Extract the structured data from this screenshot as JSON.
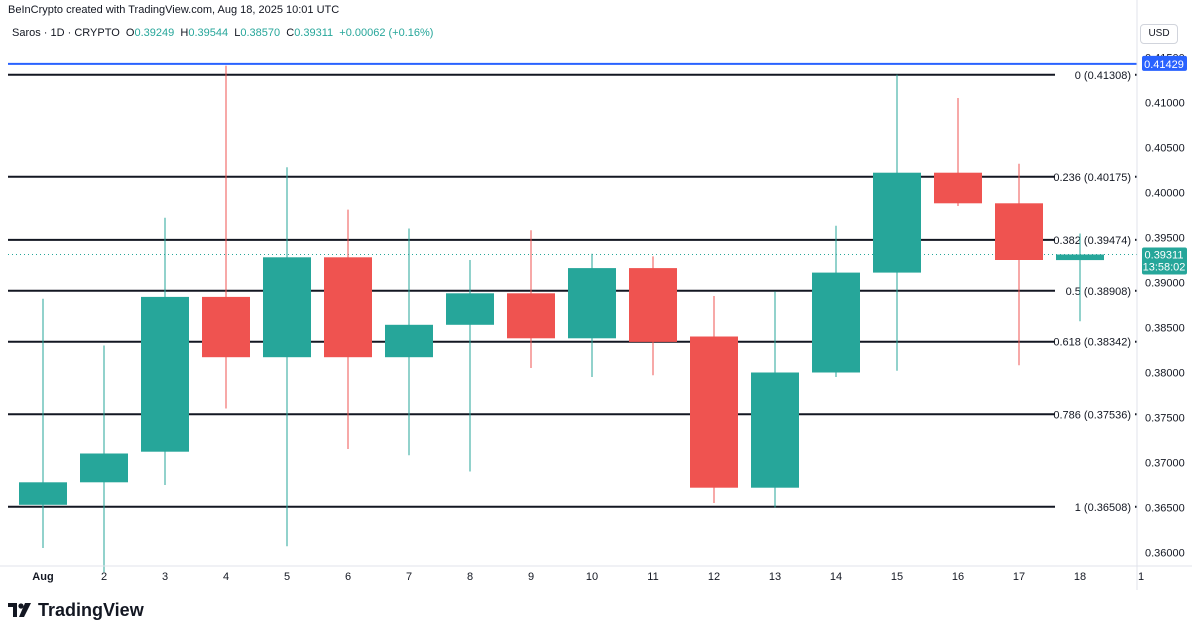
{
  "header": {
    "credit": "BeInCrypto created with TradingView.com, Aug 18, 2025 10:01 UTC"
  },
  "legend": {
    "symbol": "Saros · 1D · CRYPTO",
    "o_label": "O",
    "o_value": "0.39249",
    "h_label": "H",
    "h_value": "0.39544",
    "l_label": "L",
    "l_value": "0.38570",
    "c_label": "C",
    "c_value": "0.39311",
    "change": "+0.00062 (+0.16%)"
  },
  "currency_button": "USD",
  "footer": {
    "brand": "TradingView"
  },
  "colors": {
    "up": "#26a69a",
    "down": "#ef5350",
    "fib": "#131722",
    "hline": "#2962ff"
  },
  "price_tags": {
    "top": {
      "value": "0.41429"
    },
    "last": {
      "value": "0.39311",
      "countdown": "13:58:02"
    }
  },
  "chart_data": {
    "type": "candlestick",
    "x_labels": [
      "Aug",
      "2",
      "3",
      "4",
      "5",
      "6",
      "7",
      "8",
      "9",
      "10",
      "11",
      "12",
      "13",
      "14",
      "15",
      "16",
      "17",
      "18",
      "1"
    ],
    "y_ticks": [
      "0.36000",
      "0.36500",
      "0.37000",
      "0.37500",
      "0.38000",
      "0.38500",
      "0.39000",
      "0.39500",
      "0.40000",
      "0.40500",
      "0.41000",
      "0.41500"
    ],
    "ylim": [
      0.3585,
      0.4165
    ],
    "candles": [
      {
        "date": "Aug",
        "open": 0.3653,
        "high": 0.3882,
        "low": 0.3605,
        "close": 0.3678
      },
      {
        "date": "2",
        "open": 0.3678,
        "high": 0.383,
        "low": 0.3578,
        "close": 0.371
      },
      {
        "date": "3",
        "open": 0.3712,
        "high": 0.3972,
        "low": 0.3675,
        "close": 0.3884
      },
      {
        "date": "4",
        "open": 0.3884,
        "high": 0.4141,
        "low": 0.376,
        "close": 0.3817
      },
      {
        "date": "5",
        "open": 0.3817,
        "high": 0.4028,
        "low": 0.3607,
        "close": 0.3928
      },
      {
        "date": "6",
        "open": 0.3928,
        "high": 0.3981,
        "low": 0.3715,
        "close": 0.3817
      },
      {
        "date": "7",
        "open": 0.3817,
        "high": 0.396,
        "low": 0.3708,
        "close": 0.3853
      },
      {
        "date": "8",
        "open": 0.3853,
        "high": 0.3925,
        "low": 0.369,
        "close": 0.3888
      },
      {
        "date": "9",
        "open": 0.3888,
        "high": 0.3958,
        "low": 0.3805,
        "close": 0.3838
      },
      {
        "date": "10",
        "open": 0.3838,
        "high": 0.3932,
        "low": 0.3795,
        "close": 0.3916
      },
      {
        "date": "11",
        "open": 0.3916,
        "high": 0.3929,
        "low": 0.3797,
        "close": 0.3834
      },
      {
        "date": "12",
        "open": 0.384,
        "high": 0.3885,
        "low": 0.3655,
        "close": 0.3672
      },
      {
        "date": "13",
        "open": 0.3672,
        "high": 0.389,
        "low": 0.365,
        "close": 0.38
      },
      {
        "date": "14",
        "open": 0.38,
        "high": 0.3963,
        "low": 0.3795,
        "close": 0.3911
      },
      {
        "date": "15",
        "open": 0.3911,
        "high": 0.4131,
        "low": 0.3802,
        "close": 0.4022
      },
      {
        "date": "16",
        "open": 0.4022,
        "high": 0.4105,
        "low": 0.3985,
        "close": 0.3988
      },
      {
        "date": "17",
        "open": 0.3988,
        "high": 0.4032,
        "low": 0.3808,
        "close": 0.3925
      },
      {
        "date": "18",
        "open": 0.39249,
        "high": 0.39544,
        "low": 0.3857,
        "close": 0.39311
      }
    ],
    "fib_levels": [
      {
        "label": "0 (0.41308)",
        "value": 0.41308
      },
      {
        "label": "0.236 (0.40175)",
        "value": 0.40175
      },
      {
        "label": "0.382 (0.39474)",
        "value": 0.39474
      },
      {
        "label": "0.5 (0.38908)",
        "value": 0.38908
      },
      {
        "label": "0.618 (0.38342)",
        "value": 0.38342
      },
      {
        "label": "0.786 (0.37536)",
        "value": 0.37536
      },
      {
        "label": "1 (0.36508)",
        "value": 0.36508
      }
    ],
    "horizontal_line": 0.41429
  }
}
